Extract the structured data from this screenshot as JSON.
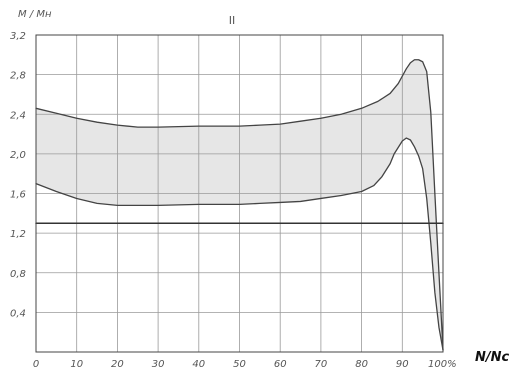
{
  "chart_data": {
    "type": "area",
    "title": "II",
    "xlabel": "N/Nc",
    "ylabel": "M / Mн",
    "xlim": [
      0,
      100
    ],
    "ylim": [
      0,
      3.2
    ],
    "grid": true,
    "x_ticks": [
      0,
      10,
      20,
      30,
      40,
      50,
      60,
      70,
      80,
      90
    ],
    "x_tick_labels": [
      "0",
      "10",
      "20",
      "30",
      "40",
      "50",
      "60",
      "70",
      "80",
      "90"
    ],
    "x_end_label": "100%",
    "y_ticks": [
      0.4,
      0.8,
      1.2,
      1.6,
      2.0,
      2.4,
      2.8,
      3.2
    ],
    "y_tick_labels": [
      "0,4",
      "0,8",
      "1,2",
      "1,6",
      "2,0",
      "2,4",
      "2,8",
      "3,2"
    ],
    "series": [
      {
        "role": "upper-boundary",
        "x": [
          0,
          5,
          10,
          15,
          20,
          25,
          30,
          40,
          50,
          55,
          60,
          65,
          70,
          75,
          80,
          84,
          87,
          89,
          91,
          92,
          93,
          94,
          95,
          96,
          97,
          98,
          99,
          100
        ],
        "y": [
          2.46,
          2.41,
          2.36,
          2.32,
          2.29,
          2.27,
          2.27,
          2.28,
          2.28,
          2.29,
          2.3,
          2.33,
          2.36,
          2.4,
          2.46,
          2.53,
          2.61,
          2.71,
          2.86,
          2.92,
          2.95,
          2.95,
          2.93,
          2.83,
          2.42,
          1.6,
          0.8,
          0.02
        ]
      },
      {
        "role": "lower-boundary",
        "x": [
          0,
          5,
          10,
          15,
          20,
          25,
          30,
          40,
          50,
          55,
          60,
          65,
          70,
          75,
          80,
          83,
          85,
          87,
          88,
          90,
          91,
          92,
          93,
          94,
          95,
          96,
          97,
          98,
          99,
          100
        ],
        "y": [
          1.7,
          1.62,
          1.55,
          1.5,
          1.48,
          1.48,
          1.48,
          1.49,
          1.49,
          1.5,
          1.51,
          1.52,
          1.55,
          1.58,
          1.62,
          1.68,
          1.77,
          1.9,
          2.0,
          2.13,
          2.16,
          2.14,
          2.07,
          1.98,
          1.85,
          1.55,
          1.1,
          0.6,
          0.25,
          0.02
        ]
      },
      {
        "role": "reference-line",
        "x": [
          0,
          100
        ],
        "y": [
          1.3,
          1.3
        ]
      }
    ],
    "colors": {
      "band_fill": "#e6e6e6",
      "curve": "#444444",
      "reference_line": "#333333",
      "grid": "#9a9a9a",
      "frame": "#444444"
    }
  }
}
